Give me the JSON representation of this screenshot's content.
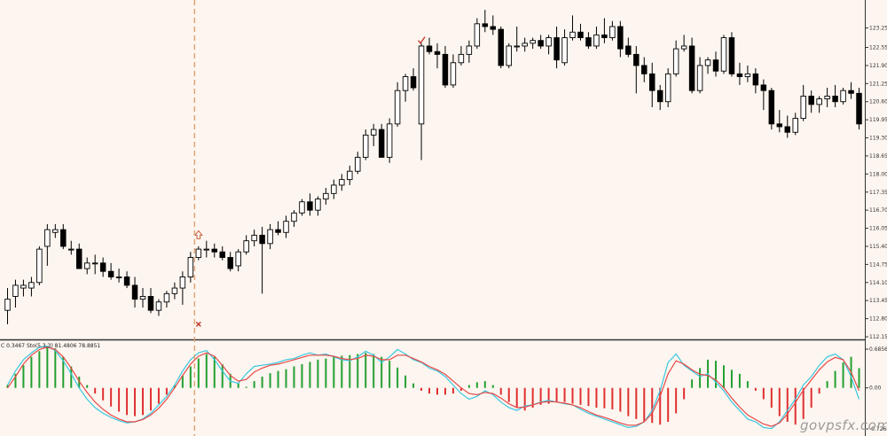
{
  "indicator_caption": "C 0.3467  Sto(5,3,3) 81.4806 78.8851",
  "watermark": "govpsfx.com",
  "colors": {
    "background": "#fdf5ef",
    "bull_body": "#ffffff",
    "bear_body": "#000000",
    "candle_outline": "#000000",
    "dashed_marker": "#e0a070",
    "up_arrow": "#c66040",
    "check_mark": "#c03020",
    "cross_mark": "#c03020",
    "hist_positive": "#22a032",
    "hist_negative": "#e03030",
    "stoch_main": "#38c8e0",
    "stoch_signal": "#e84848",
    "separator": "#333333"
  },
  "icons": {
    "up_arrow": "hollow-up-arrow-icon",
    "check": "check-mark-icon",
    "cross": "cross-mark-icon"
  },
  "chart_data": [
    {
      "type": "candlestick",
      "title": "",
      "y_ticks": [
        "123.25",
        "122.55",
        "121.90",
        "121.25",
        "120.60",
        "119.95",
        "119.30",
        "118.65",
        "118.00",
        "117.35",
        "116.70",
        "116.05",
        "115.40",
        "114.75",
        "114.10",
        "113.45",
        "112.80",
        "112.15"
      ],
      "ylim": [
        112.15,
        124.0
      ],
      "grid": false,
      "candles": [
        [
          1,
          113.1,
          113.9,
          112.6,
          113.5
        ],
        [
          2,
          113.6,
          114.2,
          113.2,
          114.0
        ],
        [
          3,
          113.9,
          114.2,
          113.6,
          114.0
        ],
        [
          4,
          113.9,
          114.3,
          113.6,
          114.1
        ],
        [
          5,
          114.1,
          115.4,
          114.0,
          115.3
        ],
        [
          6,
          115.4,
          116.2,
          114.7,
          116.0
        ],
        [
          7,
          115.9,
          116.2,
          115.7,
          116.0
        ],
        [
          8,
          116.0,
          116.2,
          115.3,
          115.4
        ],
        [
          9,
          115.3,
          115.6,
          115.1,
          115.3
        ],
        [
          10,
          115.3,
          115.5,
          114.6,
          114.6
        ],
        [
          11,
          114.6,
          115.0,
          114.4,
          114.8
        ],
        [
          12,
          114.8,
          115.1,
          114.4,
          114.8
        ],
        [
          13,
          114.8,
          115.0,
          114.3,
          114.5
        ],
        [
          14,
          114.5,
          114.8,
          114.2,
          114.3
        ],
        [
          15,
          114.3,
          114.6,
          114.1,
          114.3
        ],
        [
          16,
          114.3,
          114.5,
          113.9,
          114.0
        ],
        [
          17,
          114.0,
          114.3,
          113.2,
          113.5
        ],
        [
          18,
          113.5,
          113.9,
          113.2,
          113.6
        ],
        [
          19,
          113.6,
          113.9,
          113.0,
          113.1
        ],
        [
          20,
          113.1,
          113.5,
          112.9,
          113.4
        ],
        [
          21,
          113.4,
          113.8,
          113.2,
          113.7
        ],
        [
          22,
          113.7,
          114.1,
          113.5,
          113.9
        ],
        [
          23,
          113.9,
          114.5,
          113.3,
          114.3
        ],
        [
          24,
          114.3,
          115.2,
          114.1,
          115.0
        ],
        [
          25,
          115.0,
          115.4,
          114.9,
          115.3
        ],
        [
          26,
          115.3,
          115.6,
          115.0,
          115.3
        ],
        [
          27,
          115.3,
          115.5,
          115.0,
          115.2
        ],
        [
          28,
          115.2,
          115.4,
          114.9,
          115.0
        ],
        [
          29,
          115.0,
          115.2,
          114.5,
          114.6
        ],
        [
          30,
          114.7,
          115.3,
          114.5,
          115.2
        ],
        [
          31,
          115.2,
          115.8,
          115.1,
          115.6
        ],
        [
          32,
          115.6,
          116.0,
          115.4,
          115.8
        ],
        [
          33,
          115.8,
          116.1,
          113.7,
          115.5
        ],
        [
          34,
          115.5,
          116.2,
          115.3,
          116.0
        ],
        [
          35,
          116.0,
          116.3,
          115.8,
          115.9
        ],
        [
          36,
          115.9,
          116.5,
          115.7,
          116.3
        ],
        [
          37,
          116.3,
          116.7,
          116.1,
          116.6
        ],
        [
          38,
          116.6,
          117.1,
          116.5,
          117.0
        ],
        [
          39,
          117.0,
          117.3,
          116.5,
          116.7
        ],
        [
          40,
          116.7,
          117.2,
          116.5,
          117.1
        ],
        [
          41,
          117.1,
          117.5,
          116.9,
          117.3
        ],
        [
          42,
          117.3,
          117.8,
          117.1,
          117.6
        ],
        [
          43,
          117.6,
          118.0,
          117.4,
          117.8
        ],
        [
          44,
          117.8,
          118.3,
          117.6,
          118.1
        ],
        [
          45,
          118.1,
          118.8,
          118.0,
          118.6
        ],
        [
          46,
          118.6,
          119.6,
          118.5,
          119.4
        ],
        [
          47,
          119.4,
          119.8,
          119.0,
          119.6
        ],
        [
          48,
          119.6,
          119.8,
          118.6,
          118.6
        ],
        [
          49,
          118.6,
          120.0,
          118.4,
          119.8
        ],
        [
          50,
          119.8,
          121.3,
          119.7,
          121.0
        ],
        [
          51,
          121.0,
          121.6,
          120.6,
          121.5
        ],
        [
          52,
          121.5,
          121.8,
          121.0,
          121.1
        ],
        [
          53,
          119.8,
          122.7,
          118.5,
          122.6
        ],
        [
          54,
          122.6,
          122.9,
          122.3,
          122.4
        ],
        [
          55,
          122.4,
          122.7,
          121.8,
          122.3
        ],
        [
          56,
          122.3,
          122.6,
          121.1,
          121.2
        ],
        [
          57,
          121.2,
          122.3,
          121.1,
          122.0
        ],
        [
          58,
          122.0,
          122.6,
          121.9,
          122.3
        ],
        [
          59,
          122.3,
          122.8,
          122.0,
          122.6
        ],
        [
          60,
          122.6,
          123.6,
          122.5,
          123.4
        ],
        [
          61,
          123.4,
          123.9,
          123.1,
          123.3
        ],
        [
          62,
          123.3,
          123.7,
          123.0,
          123.2
        ],
        [
          63,
          123.2,
          123.3,
          121.8,
          121.9
        ],
        [
          64,
          121.9,
          122.7,
          121.8,
          122.6
        ],
        [
          65,
          122.6,
          123.3,
          122.4,
          122.6
        ],
        [
          66,
          122.6,
          122.9,
          122.4,
          122.7
        ],
        [
          67,
          122.7,
          122.9,
          122.5,
          122.8
        ],
        [
          68,
          122.8,
          123.0,
          122.5,
          122.6
        ],
        [
          69,
          122.6,
          123.0,
          122.3,
          122.9
        ],
        [
          70,
          122.9,
          123.3,
          121.8,
          122.1
        ],
        [
          71,
          122.0,
          123.2,
          121.9,
          122.9
        ],
        [
          72,
          122.9,
          123.7,
          122.8,
          123.1
        ],
        [
          73,
          123.1,
          123.4,
          122.8,
          122.9
        ],
        [
          74,
          122.9,
          123.1,
          122.5,
          122.6
        ],
        [
          75,
          122.6,
          123.3,
          122.5,
          123.0
        ],
        [
          76,
          123.0,
          123.6,
          122.7,
          122.9
        ],
        [
          77,
          122.9,
          123.5,
          122.8,
          123.3
        ],
        [
          78,
          123.3,
          123.5,
          122.2,
          122.5
        ],
        [
          79,
          122.6,
          122.9,
          122.2,
          122.3
        ],
        [
          80,
          122.3,
          122.6,
          120.9,
          121.9
        ],
        [
          81,
          121.9,
          122.2,
          121.3,
          121.6
        ],
        [
          82,
          121.6,
          122.0,
          120.4,
          121.0
        ],
        [
          83,
          121.0,
          121.2,
          120.3,
          120.6
        ],
        [
          84,
          120.6,
          121.8,
          120.4,
          121.6
        ],
        [
          85,
          121.6,
          122.8,
          121.5,
          122.5
        ],
        [
          86,
          122.5,
          123.0,
          122.4,
          122.6
        ],
        [
          87,
          122.6,
          122.9,
          120.9,
          121.0
        ],
        [
          88,
          121.0,
          122.2,
          120.9,
          121.9
        ],
        [
          89,
          121.9,
          122.2,
          121.6,
          122.1
        ],
        [
          90,
          122.1,
          122.4,
          121.5,
          121.7
        ],
        [
          91,
          121.7,
          123.0,
          121.6,
          122.9
        ],
        [
          92,
          122.9,
          123.1,
          121.5,
          121.6
        ],
        [
          93,
          121.6,
          122.0,
          121.2,
          121.5
        ],
        [
          94,
          121.5,
          121.9,
          121.3,
          121.6
        ],
        [
          95,
          121.6,
          121.8,
          120.9,
          121.2
        ],
        [
          96,
          121.2,
          121.4,
          120.3,
          121.0
        ],
        [
          97,
          121.0,
          121.1,
          119.6,
          119.8
        ],
        [
          98,
          119.8,
          120.3,
          119.5,
          119.7
        ],
        [
          99,
          119.7,
          120.1,
          119.3,
          119.5
        ],
        [
          100,
          119.5,
          120.2,
          119.4,
          120.0
        ],
        [
          101,
          120.0,
          121.2,
          119.9,
          120.8
        ],
        [
          102,
          120.8,
          121.0,
          120.2,
          120.5
        ],
        [
          103,
          120.5,
          120.8,
          120.2,
          120.7
        ],
        [
          104,
          120.7,
          121.1,
          120.4,
          120.8
        ],
        [
          105,
          120.8,
          121.2,
          120.4,
          120.6
        ],
        [
          106,
          120.6,
          121.1,
          120.5,
          121.0
        ],
        [
          107,
          121.0,
          121.3,
          120.7,
          120.9
        ],
        [
          108,
          120.9,
          121.1,
          119.6,
          119.8
        ]
      ],
      "markers": [
        {
          "type": "dashed-vertical-line",
          "bar": 24
        },
        {
          "type": "up-arrow",
          "bar": 25,
          "price": 115.8
        },
        {
          "type": "cross",
          "bar": 25,
          "price": 112.6
        },
        {
          "type": "check",
          "bar": 53,
          "price": 122.8
        }
      ]
    },
    {
      "type": "indicator",
      "y_ticks": [
        "0.6856",
        "0.00",
        "-0.7264"
      ],
      "ylim": [
        -0.82,
        0.78
      ],
      "histogram": [
        0.05,
        0.25,
        0.4,
        0.55,
        0.65,
        0.72,
        0.7,
        0.55,
        0.38,
        0.2,
        0.05,
        -0.1,
        -0.22,
        -0.33,
        -0.42,
        -0.48,
        -0.5,
        -0.48,
        -0.4,
        -0.28,
        -0.12,
        0.05,
        0.22,
        0.38,
        0.52,
        0.6,
        0.55,
        0.42,
        0.25,
        0.08,
        0.02,
        0.12,
        0.2,
        0.26,
        0.3,
        0.33,
        0.38,
        0.42,
        0.46,
        0.5,
        0.52,
        0.55,
        0.57,
        0.58,
        0.6,
        0.62,
        0.6,
        0.55,
        0.48,
        0.36,
        0.22,
        0.08,
        -0.05,
        -0.1,
        -0.12,
        -0.12,
        -0.1,
        -0.05,
        0.05,
        0.1,
        0.12,
        0.05,
        -0.12,
        -0.25,
        -0.35,
        -0.4,
        -0.35,
        -0.3,
        -0.28,
        -0.25,
        -0.25,
        -0.28,
        -0.3,
        -0.32,
        -0.35,
        -0.36,
        -0.38,
        -0.42,
        -0.5,
        -0.55,
        -0.6,
        -0.62,
        -0.65,
        -0.6,
        -0.45,
        -0.2,
        0.15,
        0.35,
        0.5,
        0.48,
        0.4,
        0.32,
        0.25,
        0.12,
        -0.05,
        -0.2,
        -0.35,
        -0.5,
        -0.6,
        -0.65,
        -0.55,
        -0.35,
        -0.1,
        0.12,
        0.3,
        0.45,
        0.55,
        0.35
      ],
      "stoch_main": [
        0.05,
        0.3,
        0.5,
        0.62,
        0.72,
        0.74,
        0.66,
        0.48,
        0.25,
        0.0,
        -0.2,
        -0.35,
        -0.45,
        -0.52,
        -0.58,
        -0.62,
        -0.6,
        -0.55,
        -0.45,
        -0.3,
        -0.15,
        0.05,
        0.3,
        0.5,
        0.62,
        0.66,
        0.5,
        0.3,
        0.12,
        0.08,
        0.25,
        0.38,
        0.4,
        0.42,
        0.45,
        0.5,
        0.52,
        0.58,
        0.62,
        0.58,
        0.6,
        0.55,
        0.5,
        0.48,
        0.55,
        0.65,
        0.58,
        0.45,
        0.55,
        0.68,
        0.6,
        0.5,
        0.45,
        0.35,
        0.3,
        0.2,
        0.05,
        -0.1,
        -0.2,
        -0.15,
        -0.05,
        -0.12,
        -0.25,
        -0.35,
        -0.4,
        -0.32,
        -0.3,
        -0.25,
        -0.22,
        -0.25,
        -0.28,
        -0.3,
        -0.38,
        -0.45,
        -0.5,
        -0.55,
        -0.6,
        -0.65,
        -0.7,
        -0.68,
        -0.6,
        -0.4,
        -0.05,
        0.45,
        0.6,
        0.4,
        0.3,
        0.2,
        0.25,
        0.1,
        -0.05,
        -0.25,
        -0.4,
        -0.55,
        -0.6,
        -0.7,
        -0.72,
        -0.6,
        -0.4,
        -0.2,
        0.05,
        0.2,
        0.4,
        0.55,
        0.6,
        0.5,
        0.2,
        -0.2
      ],
      "stoch_signal": [
        0.0,
        0.2,
        0.42,
        0.58,
        0.68,
        0.72,
        0.68,
        0.55,
        0.35,
        0.12,
        -0.08,
        -0.25,
        -0.38,
        -0.48,
        -0.55,
        -0.6,
        -0.6,
        -0.56,
        -0.48,
        -0.36,
        -0.2,
        0.0,
        0.22,
        0.42,
        0.56,
        0.62,
        0.56,
        0.4,
        0.22,
        0.12,
        0.15,
        0.28,
        0.35,
        0.4,
        0.42,
        0.46,
        0.5,
        0.54,
        0.58,
        0.58,
        0.58,
        0.56,
        0.52,
        0.5,
        0.52,
        0.58,
        0.56,
        0.5,
        0.5,
        0.58,
        0.58,
        0.52,
        0.46,
        0.38,
        0.32,
        0.24,
        0.12,
        0.0,
        -0.1,
        -0.12,
        -0.08,
        -0.1,
        -0.18,
        -0.28,
        -0.35,
        -0.34,
        -0.3,
        -0.26,
        -0.24,
        -0.25,
        -0.27,
        -0.3,
        -0.35,
        -0.42,
        -0.48,
        -0.52,
        -0.57,
        -0.62,
        -0.66,
        -0.66,
        -0.6,
        -0.45,
        -0.15,
        0.25,
        0.48,
        0.42,
        0.32,
        0.24,
        0.22,
        0.14,
        0.0,
        -0.18,
        -0.34,
        -0.48,
        -0.56,
        -0.64,
        -0.68,
        -0.62,
        -0.46,
        -0.26,
        -0.04,
        0.14,
        0.32,
        0.46,
        0.54,
        0.5,
        0.28,
        -0.05
      ]
    }
  ]
}
